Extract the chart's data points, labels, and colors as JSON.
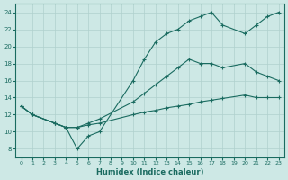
{
  "xlabel": "Humidex (Indice chaleur)",
  "bg_color": "#cde8e5",
  "grid_color": "#b0d0ce",
  "line_color": "#1a6b60",
  "xlim": [
    -0.5,
    23.5
  ],
  "ylim": [
    7,
    25
  ],
  "xticks": [
    0,
    1,
    2,
    3,
    4,
    5,
    6,
    7,
    8,
    9,
    10,
    11,
    12,
    13,
    14,
    15,
    16,
    17,
    18,
    19,
    20,
    21,
    22,
    23
  ],
  "yticks": [
    8,
    10,
    12,
    14,
    16,
    18,
    20,
    22,
    24
  ],
  "line1_x": [
    0,
    1,
    3,
    4,
    5,
    6,
    7,
    10,
    11,
    12,
    13,
    14,
    15,
    16,
    17,
    18,
    20,
    21,
    22,
    23
  ],
  "line1_y": [
    13,
    12,
    11,
    10.5,
    8.0,
    9.5,
    10.0,
    16.0,
    18.5,
    20.5,
    21.5,
    22.0,
    23.0,
    23.5,
    24.0,
    22.5,
    21.5,
    22.5,
    23.5,
    24.0
  ],
  "line2_x": [
    0,
    1,
    3,
    4,
    5,
    6,
    7,
    10,
    11,
    12,
    13,
    14,
    15,
    16,
    17,
    18,
    20,
    21,
    22,
    23
  ],
  "line2_y": [
    13,
    12,
    11,
    10.5,
    10.5,
    11.0,
    11.5,
    13.5,
    14.5,
    15.5,
    16.5,
    17.5,
    18.5,
    18.0,
    18.0,
    17.5,
    18.0,
    17.0,
    16.5,
    16.0
  ],
  "line3_x": [
    0,
    1,
    3,
    4,
    5,
    6,
    7,
    10,
    11,
    12,
    13,
    14,
    15,
    16,
    17,
    18,
    20,
    21,
    22,
    23
  ],
  "line3_y": [
    13,
    12,
    11,
    10.5,
    10.5,
    10.8,
    11.0,
    12.0,
    12.3,
    12.5,
    12.8,
    13.0,
    13.2,
    13.5,
    13.7,
    13.9,
    14.3,
    14.0,
    14.0,
    14.0
  ]
}
